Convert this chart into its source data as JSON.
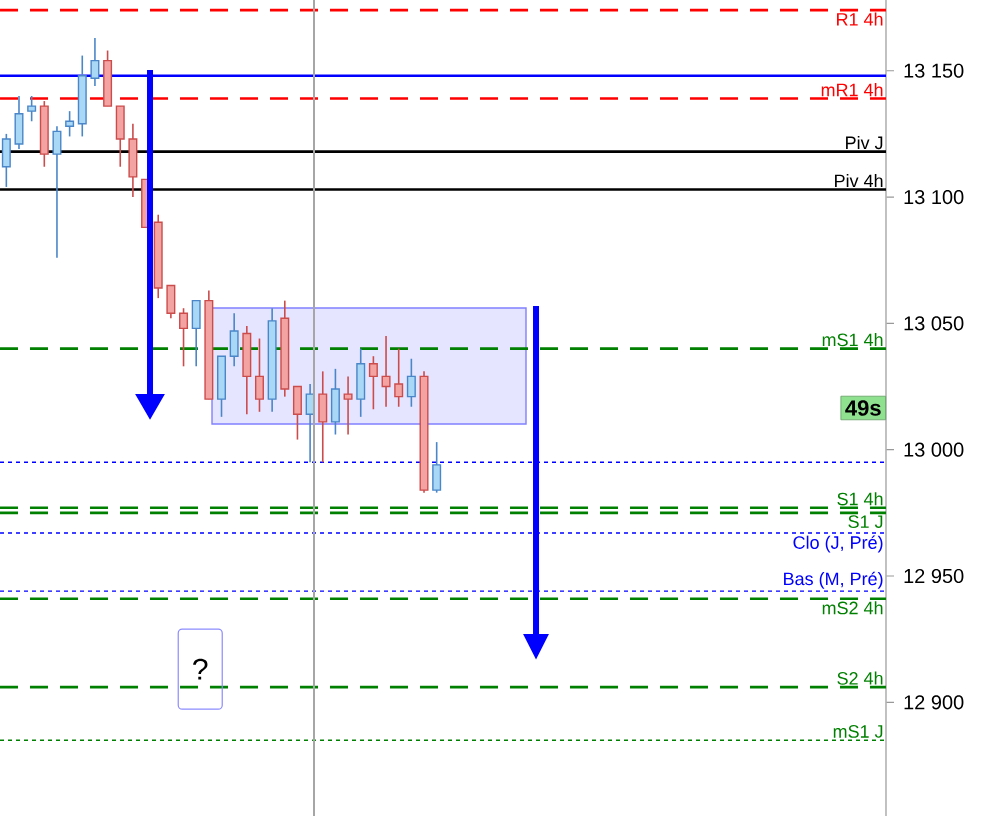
{
  "chart_data": {
    "type": "candlestick",
    "categories": [
      null,
      null,
      null,
      null,
      null,
      null,
      null,
      null,
      null,
      null,
      null,
      null,
      null,
      null,
      null,
      null,
      null,
      null,
      null,
      null,
      null,
      null,
      null,
      null,
      null,
      null,
      null,
      null,
      null,
      null,
      null,
      null,
      null,
      null,
      null,
      null,
      null,
      null,
      null,
      null,
      null,
      null,
      null,
      null,
      null,
      null,
      null,
      null,
      null,
      null,
      null,
      null,
      null,
      null,
      null,
      null,
      null,
      null,
      null,
      null,
      null,
      null,
      null,
      null,
      null,
      null,
      null,
      null,
      null,
      null
    ],
    "ohlc": [
      [
        13112,
        13125,
        13104,
        13123
      ],
      [
        13121,
        13140,
        13119,
        13133
      ],
      [
        13134,
        13140,
        13130,
        13136
      ],
      [
        13136,
        13138,
        13112,
        13117
      ],
      [
        13117,
        13128,
        13076,
        13126
      ],
      [
        13128,
        13134,
        13124,
        13130
      ],
      [
        13129,
        13156,
        13124,
        13148
      ],
      [
        13147,
        13163,
        13144,
        13154
      ],
      [
        13154,
        13158,
        13136,
        13136
      ],
      [
        13136,
        13136,
        13112,
        13123
      ],
      [
        13123,
        13129,
        13100,
        13108
      ],
      [
        13107,
        13107,
        13088,
        13088
      ],
      [
        13090,
        13093,
        13060,
        13064
      ],
      [
        13065,
        13065,
        13052,
        13054
      ],
      [
        13054,
        13056,
        13033,
        13048
      ],
      [
        13048,
        13059,
        13033,
        13059
      ],
      [
        13059,
        13063,
        13020,
        13020
      ],
      [
        13020,
        13037,
        13013,
        13037
      ],
      [
        13037,
        13054,
        13033,
        13047
      ],
      [
        13046,
        13049,
        13014,
        13029
      ],
      [
        13029,
        13044,
        13015,
        13020
      ],
      [
        13020,
        13056,
        13015,
        13051
      ],
      [
        13052,
        13059,
        13021,
        13024
      ],
      [
        13025,
        13025,
        13004,
        13014
      ],
      [
        13014,
        13026,
        12995,
        13022
      ],
      [
        13022,
        13031,
        12995,
        13011
      ],
      [
        13011,
        13032,
        13006,
        13024
      ],
      [
        13022,
        13029,
        13006,
        13020
      ],
      [
        13020,
        13040,
        13013,
        13034
      ],
      [
        13034,
        13037,
        13016,
        13029
      ],
      [
        13029,
        13045,
        13017,
        13025
      ],
      [
        13026,
        13040,
        13017,
        13021
      ],
      [
        13021,
        13036,
        13017,
        13029
      ],
      [
        13029,
        13031,
        12983,
        12984
      ],
      [
        12984,
        13003,
        12983,
        12994
      ],
      null,
      null,
      null,
      null,
      null,
      null,
      null,
      null,
      null,
      null,
      null,
      null,
      null,
      null,
      null,
      null,
      null,
      null,
      null,
      null,
      null,
      null,
      null,
      null,
      null,
      null,
      null,
      null,
      null,
      null,
      null,
      null,
      null,
      null,
      null
    ],
    "ylim": [
      12855,
      13178
    ],
    "yticks": [
      {
        "value": 12900,
        "label": "12 900"
      },
      {
        "value": 12950,
        "label": "12 950"
      },
      {
        "value": 13000,
        "label": "13 000"
      },
      {
        "value": 13050,
        "label": "13 050"
      },
      {
        "value": 13100,
        "label": "13 100"
      },
      {
        "value": 13150,
        "label": "13 150"
      }
    ],
    "tick_labels": "y",
    "ref_lines": [
      {
        "axis": "y",
        "value": 13174,
        "label": "R1 4h",
        "color": "#ff0000",
        "line_style": "dashed"
      },
      {
        "axis": "y",
        "value": 13148,
        "color": "#0000ff",
        "line_style": "solid"
      },
      {
        "axis": "y",
        "value": 13139,
        "label": "mR1 4h",
        "color": "#ff0000",
        "line_style": "dashed"
      },
      {
        "axis": "y",
        "value": 13118,
        "label": "Piv J",
        "color": "#000000",
        "line_style": "solid"
      },
      {
        "axis": "y",
        "value": 13103,
        "label": "Piv 4h",
        "color": "#000000",
        "line_style": "solid"
      },
      {
        "axis": "y",
        "value": 13040,
        "label": "mS1 4h",
        "color": "#008000",
        "line_style": "dashed"
      },
      {
        "axis": "y",
        "value": 12995,
        "color": "#0000ff",
        "line_style": "dotted"
      },
      {
        "axis": "y",
        "value": 12977,
        "label": "S1 4h",
        "color": "#008000",
        "line_style": "dashed"
      },
      {
        "axis": "y",
        "value": 12975,
        "label": "S1 J",
        "color": "#008000",
        "line_style": "dashed"
      },
      {
        "axis": "y",
        "value": 12967,
        "label": "Clo (J, Pré)",
        "color": "#0000ff",
        "line_style": "dotted"
      },
      {
        "axis": "y",
        "value": 12944,
        "label": "Bas (M, Pré)",
        "color": "#0000ff",
        "line_style": "dotted"
      },
      {
        "axis": "y",
        "value": 12941,
        "label": "mS2 4h",
        "color": "#008000",
        "line_style": "dashed"
      },
      {
        "axis": "y",
        "value": 12906,
        "label": "S2 4h",
        "color": "#008000",
        "line_style": "dashed"
      },
      {
        "axis": "y",
        "value": 12885,
        "label": "mS1 J",
        "color": "#008000",
        "line_style": "dotted"
      }
    ],
    "annotations": [
      "?",
      "49s"
    ]
  }
}
